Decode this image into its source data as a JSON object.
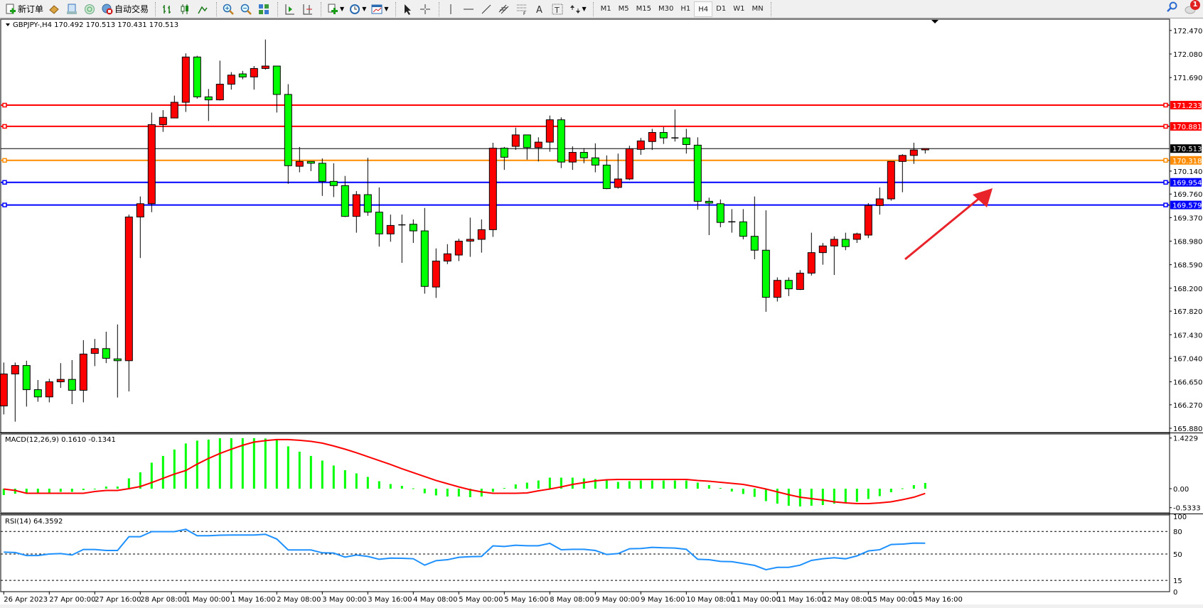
{
  "toolbar": {
    "new_order_label": "新订单",
    "auto_trading_label": "自动交易",
    "icons": [
      "new-order-icon",
      "market-watch-icon",
      "data-window-icon",
      "navigator-icon",
      "auto-trading-icon",
      "bar-chart-icon",
      "candlestick-icon",
      "line-chart-icon",
      "zoom-in-icon",
      "zoom-out-icon",
      "tile-windows-icon",
      "auto-scroll-icon",
      "chart-shift-icon",
      "indicators-icon",
      "periods-icon",
      "templates-icon",
      "cursor-icon",
      "crosshair-icon",
      "vertical-line-icon",
      "horizontal-line-icon",
      "trendline-icon",
      "equidistant-channel-icon",
      "fibonacci-icon",
      "text-icon",
      "text-label-icon",
      "arrows-icon"
    ],
    "timeframes": [
      "M1",
      "M5",
      "M15",
      "M30",
      "H1",
      "H4",
      "D1",
      "W1",
      "MN"
    ],
    "active_timeframe": "H4",
    "notification_count": "1"
  },
  "chart": {
    "header": "GBPJPY-,H4  170.492 170.513 170.431 170.513",
    "macd_label": "MACD(12,26,9) 0.1610 -0.1341",
    "rsi_label": "RSI(14) 64.3592"
  },
  "chart_data": {
    "type": "candlestick",
    "symbol": "GBPJPY-",
    "timeframe": "H4",
    "colors": {
      "bull": "#ff0000",
      "bear": "#00ff00",
      "macd_hist": "#00ff00",
      "macd_signal": "#ff0000",
      "rsi": "#1e90ff"
    },
    "price_ticks": [
      "172.470",
      "172.080",
      "171.690",
      "170.140",
      "169.760",
      "169.370",
      "168.980",
      "168.590",
      "168.200",
      "167.820",
      "167.430",
      "167.040",
      "166.650",
      "166.270",
      "165.880"
    ],
    "price_range": [
      165.88,
      172.47
    ],
    "horizontal_lines": [
      {
        "price": "171.233",
        "color": "#ff0000"
      },
      {
        "price": "170.881",
        "color": "#ff0000"
      },
      {
        "price": "170.318",
        "color": "#ff8c00"
      },
      {
        "price": "169.954",
        "color": "#0000ff"
      },
      {
        "price": "169.579",
        "color": "#0000ff"
      }
    ],
    "current_price": "170.513",
    "time_labels": [
      "26 Apr 2023",
      "27 Apr 00:00",
      "27 Apr 16:00",
      "28 Apr 08:00",
      "1 May 00:00",
      "1 May 16:00",
      "2 May 08:00",
      "3 May 00:00",
      "3 May 16:00",
      "4 May 08:00",
      "5 May 00:00",
      "5 May 16:00",
      "8 May 08:00",
      "9 May 00:00",
      "9 May 16:00",
      "10 May 08:00",
      "11 May 00:00",
      "11 May 16:00",
      "12 May 08:00",
      "15 May 00:00",
      "15 May 16:00"
    ],
    "ohlc": [
      [
        166.25,
        166.97,
        166.11,
        166.78
      ],
      [
        166.78,
        166.97,
        165.99,
        166.92
      ],
      [
        166.92,
        167.0,
        166.24,
        166.52
      ],
      [
        166.52,
        166.68,
        166.32,
        166.4
      ],
      [
        166.4,
        166.7,
        166.31,
        166.65
      ],
      [
        166.65,
        166.96,
        166.55,
        166.69
      ],
      [
        166.69,
        167.01,
        166.28,
        166.51
      ],
      [
        166.51,
        167.34,
        166.31,
        167.11
      ],
      [
        167.12,
        167.36,
        166.91,
        167.2
      ],
      [
        167.2,
        167.48,
        166.96,
        167.04
      ],
      [
        167.03,
        167.6,
        166.39,
        167.0
      ],
      [
        167.0,
        169.42,
        166.49,
        169.38
      ],
      [
        169.38,
        169.72,
        168.7,
        169.6
      ],
      [
        169.6,
        171.11,
        169.46,
        170.91
      ],
      [
        170.91,
        171.15,
        170.79,
        171.03
      ],
      [
        171.02,
        171.39,
        171.02,
        171.28
      ],
      [
        171.28,
        172.09,
        171.12,
        172.03
      ],
      [
        172.03,
        172.05,
        171.34,
        171.37
      ],
      [
        171.37,
        171.5,
        170.97,
        171.32
      ],
      [
        171.32,
        171.97,
        171.31,
        171.58
      ],
      [
        171.58,
        171.78,
        171.49,
        171.73
      ],
      [
        171.75,
        171.8,
        171.66,
        171.7
      ],
      [
        171.7,
        171.88,
        171.49,
        171.84
      ],
      [
        171.84,
        172.32,
        171.82,
        171.88
      ],
      [
        171.88,
        171.88,
        171.11,
        171.41
      ],
      [
        171.41,
        171.58,
        169.93,
        170.23
      ],
      [
        170.22,
        170.54,
        170.12,
        170.3
      ],
      [
        170.3,
        170.3,
        170.14,
        170.27
      ],
      [
        170.27,
        170.35,
        169.73,
        169.97
      ],
      [
        169.97,
        170.27,
        169.71,
        169.9
      ],
      [
        169.9,
        170.06,
        169.38,
        169.39
      ],
      [
        169.39,
        169.81,
        169.12,
        169.75
      ],
      [
        169.75,
        170.36,
        169.4,
        169.46
      ],
      [
        169.46,
        169.87,
        168.89,
        169.1
      ],
      [
        169.1,
        169.42,
        168.97,
        169.24
      ],
      [
        169.25,
        169.42,
        168.62,
        169.25
      ],
      [
        169.26,
        169.34,
        168.95,
        169.15
      ],
      [
        169.15,
        169.53,
        168.11,
        168.23
      ],
      [
        168.22,
        168.86,
        168.04,
        168.65
      ],
      [
        168.65,
        168.93,
        168.6,
        168.77
      ],
      [
        168.75,
        169.02,
        168.65,
        168.98
      ],
      [
        168.98,
        169.37,
        168.72,
        169.01
      ],
      [
        169.01,
        169.34,
        168.79,
        169.17
      ],
      [
        169.17,
        170.61,
        169.05,
        170.52
      ],
      [
        170.52,
        170.54,
        170.16,
        170.37
      ],
      [
        170.55,
        170.86,
        170.49,
        170.74
      ],
      [
        170.74,
        170.74,
        170.33,
        170.53
      ],
      [
        170.53,
        170.7,
        170.3,
        170.62
      ],
      [
        170.62,
        171.06,
        170.46,
        170.99
      ],
      [
        170.99,
        171.03,
        170.19,
        170.29
      ],
      [
        170.29,
        170.55,
        170.16,
        170.45
      ],
      [
        170.45,
        170.52,
        170.27,
        170.36
      ],
      [
        170.36,
        170.6,
        170.12,
        170.24
      ],
      [
        170.24,
        170.4,
        169.84,
        169.85
      ],
      [
        169.87,
        170.43,
        169.85,
        170.01
      ],
      [
        170.01,
        170.56,
        169.99,
        170.51
      ],
      [
        170.5,
        170.69,
        170.41,
        170.64
      ],
      [
        170.63,
        170.84,
        170.49,
        170.78
      ],
      [
        170.78,
        170.87,
        170.59,
        170.69
      ],
      [
        170.69,
        171.16,
        170.63,
        170.69
      ],
      [
        170.69,
        170.84,
        170.43,
        170.58
      ],
      [
        170.57,
        170.7,
        169.5,
        169.64
      ],
      [
        169.64,
        169.7,
        169.08,
        169.61
      ],
      [
        169.6,
        169.67,
        169.21,
        169.29
      ],
      [
        169.29,
        169.51,
        169.12,
        169.3
      ],
      [
        169.3,
        169.51,
        169.01,
        169.06
      ],
      [
        169.06,
        169.72,
        168.68,
        168.83
      ],
      [
        168.83,
        169.49,
        167.81,
        168.05
      ],
      [
        168.05,
        168.38,
        167.98,
        168.33
      ],
      [
        168.33,
        168.38,
        168.07,
        168.19
      ],
      [
        168.18,
        168.5,
        168.17,
        168.45
      ],
      [
        168.45,
        169.12,
        168.41,
        168.79
      ],
      [
        168.79,
        168.95,
        168.59,
        168.9
      ],
      [
        168.9,
        169.06,
        168.42,
        169.01
      ],
      [
        169.01,
        169.12,
        168.83,
        168.89
      ],
      [
        169.01,
        169.12,
        168.95,
        169.1
      ],
      [
        169.08,
        169.61,
        169.03,
        169.57
      ],
      [
        169.57,
        169.87,
        169.42,
        169.68
      ],
      [
        169.68,
        170.3,
        169.65,
        170.3
      ],
      [
        170.3,
        170.42,
        169.79,
        170.4
      ],
      [
        170.4,
        170.61,
        170.26,
        170.49
      ],
      [
        170.492,
        170.513,
        170.431,
        170.513
      ]
    ],
    "macd": {
      "ticks": [
        "1.4229",
        "0.00",
        "-0.5333"
      ],
      "range": [
        -0.5333,
        1.4229
      ],
      "histogram": [
        -0.18,
        -0.14,
        -0.13,
        -0.12,
        -0.12,
        -0.09,
        -0.09,
        -0.04,
        -0.01,
        0.06,
        0.06,
        0.29,
        0.46,
        0.73,
        0.92,
        1.1,
        1.27,
        1.35,
        1.38,
        1.42,
        1.42,
        1.42,
        1.42,
        1.41,
        1.37,
        1.19,
        1.04,
        0.92,
        0.79,
        0.65,
        0.52,
        0.43,
        0.33,
        0.21,
        0.13,
        0.08,
        0.01,
        -0.13,
        -0.19,
        -0.22,
        -0.22,
        -0.24,
        -0.22,
        -0.09,
        0.02,
        0.12,
        0.17,
        0.23,
        0.31,
        0.31,
        0.31,
        0.29,
        0.27,
        0.23,
        0.19,
        0.21,
        0.23,
        0.23,
        0.23,
        0.23,
        0.23,
        0.17,
        0.1,
        0.02,
        -0.08,
        -0.15,
        -0.23,
        -0.35,
        -0.42,
        -0.48,
        -0.5,
        -0.48,
        -0.46,
        -0.42,
        -0.4,
        -0.37,
        -0.29,
        -0.21,
        -0.1,
        0.01,
        0.1,
        0.161
      ],
      "signal": [
        -0.01,
        -0.05,
        -0.13,
        -0.13,
        -0.13,
        -0.13,
        -0.13,
        -0.13,
        -0.08,
        -0.05,
        -0.05,
        0.0,
        0.06,
        0.17,
        0.29,
        0.41,
        0.51,
        0.69,
        0.85,
        0.99,
        1.11,
        1.22,
        1.31,
        1.35,
        1.38,
        1.38,
        1.36,
        1.33,
        1.28,
        1.2,
        1.11,
        1.01,
        0.9,
        0.79,
        0.68,
        0.56,
        0.45,
        0.34,
        0.23,
        0.14,
        0.05,
        -0.03,
        -0.09,
        -0.13,
        -0.13,
        -0.13,
        -0.12,
        -0.06,
        -0.01,
        0.05,
        0.12,
        0.17,
        0.22,
        0.25,
        0.26,
        0.26,
        0.26,
        0.26,
        0.26,
        0.26,
        0.26,
        0.23,
        0.21,
        0.18,
        0.15,
        0.12,
        0.06,
        -0.01,
        -0.09,
        -0.17,
        -0.24,
        -0.28,
        -0.32,
        -0.37,
        -0.4,
        -0.42,
        -0.42,
        -0.4,
        -0.37,
        -0.31,
        -0.24,
        -0.134
      ]
    },
    "rsi": {
      "ticks": [
        "100",
        "80",
        "50",
        "15",
        "0"
      ],
      "levels": [
        80,
        50,
        15
      ],
      "values": [
        52.5,
        52,
        48,
        48,
        50,
        50.6,
        48.7,
        56,
        56,
        54.7,
        54.7,
        73,
        73,
        79.7,
        79.7,
        79.7,
        82.8,
        74.3,
        74.3,
        75,
        75.2,
        75.2,
        75.2,
        76.2,
        69.9,
        55.4,
        55.4,
        55.4,
        51.6,
        51.3,
        45.9,
        48.7,
        46.8,
        43,
        44.6,
        44.3,
        43.7,
        35.2,
        41.2,
        42.4,
        45.6,
        46.5,
        46.8,
        60.8,
        60,
        61.7,
        61,
        61,
        64.2,
        55.7,
        56.3,
        56.3,
        54.7,
        49.4,
        50.6,
        57,
        57.3,
        58.8,
        58.2,
        57.9,
        56.3,
        43,
        42.4,
        40.2,
        39.9,
        37.4,
        34.9,
        29.2,
        32.3,
        32.3,
        35.2,
        41.5,
        43.7,
        45,
        43.7,
        47.5,
        54.1,
        55.7,
        62.6,
        63.2,
        64.5,
        64.36
      ]
    },
    "annotation": {
      "type": "arrow",
      "color": "#e8232a",
      "direction": "up-right"
    }
  }
}
